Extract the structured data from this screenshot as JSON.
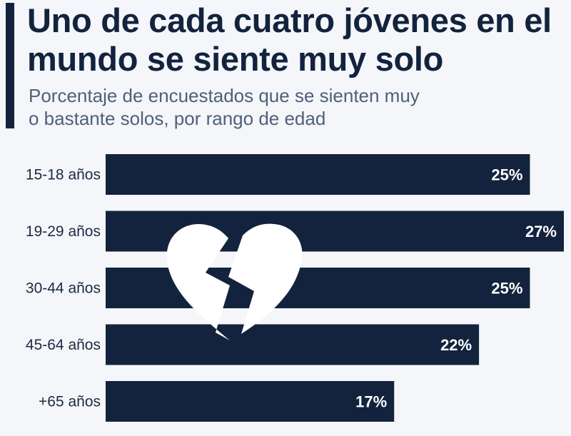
{
  "header": {
    "title": "Uno de cada cuatro jóvenes en el mundo se siente muy solo",
    "subtitle": "Porcentaje de encuestados que se sienten muy o bastante solos, por rango de edad"
  },
  "colors": {
    "bar": "#13233d",
    "text": "#13233d",
    "background": "#f4f6fa",
    "icon": "#ffffff"
  },
  "icon": "broken-heart-icon",
  "chart_data": {
    "type": "bar",
    "orientation": "horizontal",
    "categories": [
      "15-18 años",
      "19-29 años",
      "30-44 años",
      "45-64 años",
      "+65 años"
    ],
    "values": [
      25,
      27,
      25,
      22,
      17
    ],
    "value_labels": [
      "25%",
      "27%",
      "25%",
      "22%",
      "17%"
    ],
    "unit": "%",
    "xlim": [
      0,
      27
    ],
    "grid": false,
    "legend": "none"
  }
}
